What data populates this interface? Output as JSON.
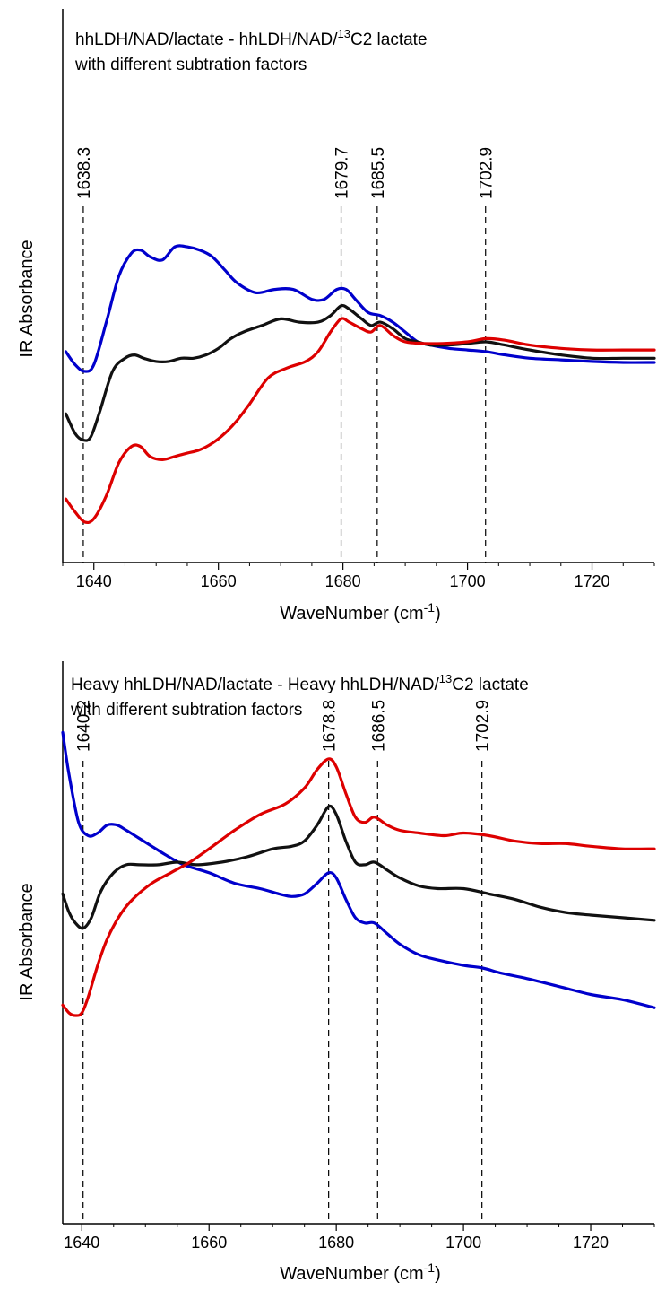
{
  "chart_data": [
    {
      "type": "line",
      "title_main": "hhLDH/NAD/lactate - hhLDH/NAD/",
      "title_sup": "13",
      "title_tail": "C2 lactate",
      "subtitle": "with different subtration factors",
      "xlabel_main": "WaveNumber (cm",
      "xlabel_sup": "-1",
      "xlabel_tail": ")",
      "ylabel": "IR Absorbance",
      "xlim": [
        1635,
        1730
      ],
      "ylim": [
        0,
        100
      ],
      "xticks": [
        1640,
        1660,
        1680,
        1700,
        1720
      ],
      "y_ticks_shown": false,
      "peaks": [
        "1638.3",
        "1679.7",
        "1685.5",
        "1702.9"
      ],
      "series": [
        {
          "color": "#0000cc",
          "x": [
            1635.5,
            1637,
            1638.5,
            1640,
            1642,
            1644,
            1646,
            1647.5,
            1649,
            1651,
            1653,
            1655,
            1657,
            1659,
            1661,
            1663,
            1666,
            1669,
            1672,
            1675,
            1677,
            1679,
            1680.5,
            1682,
            1684,
            1686,
            1688,
            1690,
            1692,
            1694,
            1697,
            1700,
            1703,
            1706,
            1710,
            1715,
            1720,
            1725,
            1730
          ],
          "y": [
            57,
            53,
            51,
            53,
            66,
            80,
            87,
            88,
            86,
            85,
            89,
            89,
            88,
            86,
            82,
            78,
            75,
            76,
            76,
            73,
            73,
            76,
            76,
            73,
            69,
            68,
            66,
            63,
            60,
            59,
            58,
            57.5,
            57,
            56,
            55,
            54.5,
            54,
            53.7,
            53.7
          ]
        },
        {
          "color": "#111111",
          "x": [
            1635.5,
            1637,
            1638.3,
            1639.5,
            1641,
            1643,
            1645,
            1646.5,
            1648,
            1650,
            1652,
            1654,
            1656,
            1658,
            1660,
            1662,
            1664,
            1667,
            1670,
            1673,
            1676,
            1678,
            1679.7,
            1681,
            1683,
            1684.5,
            1686,
            1688,
            1690,
            1692,
            1694,
            1697,
            1700,
            1703,
            1706,
            1710,
            1715,
            1720,
            1725,
            1730
          ],
          "y": [
            38,
            32,
            30,
            31,
            39,
            51,
            55,
            56,
            55,
            54,
            54,
            55,
            55,
            56,
            58,
            61,
            63,
            65,
            67,
            66,
            66,
            68,
            71,
            70,
            67,
            65,
            66,
            64,
            61,
            60,
            59,
            59,
            59.5,
            60,
            59,
            57.5,
            56,
            55,
            55,
            55
          ]
        },
        {
          "color": "#dd0000",
          "x": [
            1635.5,
            1637,
            1638.5,
            1640,
            1642,
            1644,
            1646,
            1647.5,
            1649,
            1651,
            1653,
            1655,
            1657,
            1659,
            1661,
            1663,
            1665,
            1668,
            1671,
            1674,
            1676,
            1678,
            1679.7,
            1681,
            1683,
            1684.5,
            1686,
            1688,
            1690,
            1693,
            1696,
            1700,
            1703,
            1706,
            1710,
            1715,
            1720,
            1725,
            1730
          ],
          "y": [
            12,
            8,
            5,
            6,
            13,
            23,
            28,
            28,
            25,
            24,
            25,
            26,
            27,
            29,
            32,
            36,
            41,
            49,
            52,
            54,
            57,
            63,
            67,
            66,
            64,
            63,
            65,
            62,
            60,
            59.5,
            59.5,
            60,
            61,
            60.5,
            59,
            58,
            57.5,
            57.5,
            57.5
          ]
        }
      ]
    },
    {
      "type": "line",
      "title_main": "Heavy hhLDH/NAD/lactate - Heavy hhLDH/NAD/",
      "title_sup": "13",
      "title_tail": "C2 lactate",
      "subtitle": "with different subtration factors",
      "xlabel_main": "WaveNumber (cm",
      "xlabel_sup": "-1",
      "xlabel_tail": ")",
      "ylabel": "IR Absorbance",
      "xlim": [
        1637,
        1730
      ],
      "ylim": [
        0,
        100
      ],
      "xticks": [
        1640,
        1660,
        1680,
        1700,
        1720
      ],
      "y_ticks_shown": false,
      "peaks": [
        "1640.2",
        "1678.8",
        "1686.5",
        "1702.9"
      ],
      "series": [
        {
          "color": "#0000cc",
          "x": [
            1637,
            1638,
            1639.5,
            1641,
            1642.5,
            1644,
            1645.5,
            1647,
            1649,
            1651,
            1653,
            1656,
            1660,
            1664,
            1668,
            1671,
            1673,
            1675,
            1677,
            1678.8,
            1680,
            1681.5,
            1683,
            1684.5,
            1686,
            1688,
            1690,
            1693,
            1696,
            1700,
            1703,
            1706,
            1710,
            1715,
            1720,
            1725,
            1730
          ],
          "y": [
            108,
            92,
            74,
            69,
            70,
            73,
            73,
            71,
            68,
            65,
            62,
            58,
            55,
            51,
            49,
            47,
            46,
            47,
            51,
            55,
            53,
            45,
            38,
            36,
            36,
            32,
            28,
            24,
            22,
            20,
            19,
            17,
            15,
            12,
            9,
            7,
            4
          ]
        },
        {
          "color": "#111111",
          "x": [
            1637,
            1638,
            1639,
            1640.2,
            1641.5,
            1643,
            1645,
            1647,
            1649,
            1652,
            1655,
            1658,
            1662,
            1666,
            1670,
            1673,
            1675,
            1677,
            1678.8,
            1680,
            1681.5,
            1683,
            1684.5,
            1686,
            1688,
            1690,
            1693,
            1696,
            1700,
            1704,
            1708,
            1712,
            1716,
            1720,
            1725,
            1730
          ],
          "y": [
            47,
            40,
            36,
            34,
            38,
            48,
            55,
            58,
            58,
            58,
            59,
            58,
            59,
            61,
            64,
            65,
            67,
            73,
            80,
            77,
            67,
            59,
            58,
            59,
            56,
            53,
            50,
            49,
            49,
            47,
            45,
            42,
            40,
            39,
            38,
            37
          ]
        },
        {
          "color": "#dd0000",
          "x": [
            1637,
            1638,
            1639,
            1640,
            1641,
            1642.5,
            1644,
            1646,
            1648,
            1651,
            1654,
            1657,
            1660,
            1664,
            1668,
            1672,
            1675,
            1677,
            1678.8,
            1680,
            1681.5,
            1683,
            1684.5,
            1686,
            1688,
            1690,
            1693,
            1697,
            1700,
            1704,
            1708,
            1712,
            1716,
            1720,
            1725,
            1730
          ],
          "y": [
            5,
            2,
            1,
            2,
            8,
            20,
            30,
            39,
            45,
            51,
            55,
            59,
            64,
            71,
            77,
            81,
            87,
            94,
            98,
            95,
            85,
            76,
            74,
            76,
            73,
            71,
            70,
            69,
            70,
            69,
            67,
            66,
            66,
            65,
            64,
            64
          ]
        }
      ]
    }
  ]
}
